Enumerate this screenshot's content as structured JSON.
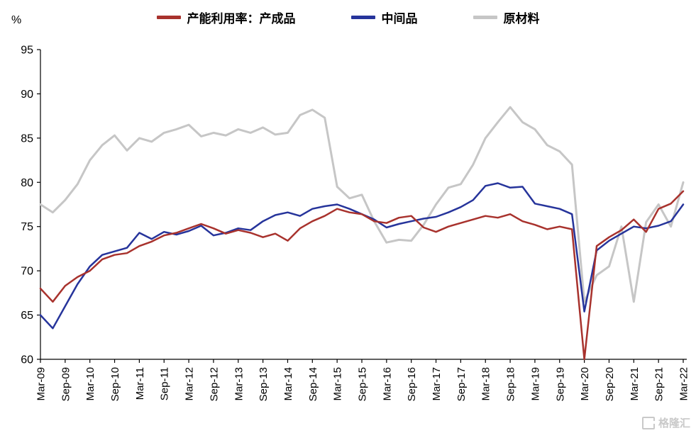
{
  "watermark": {
    "text": "格隆汇"
  },
  "chart_data": {
    "type": "line",
    "title": "",
    "xlabel": "",
    "ylabel": "%",
    "ylim": [
      60,
      95
    ],
    "ytick_step": 5,
    "grid": false,
    "legend_position": "top",
    "points_per_tick": 2,
    "x_tick_labels": [
      "Mar-09",
      "Sep-09",
      "Mar-10",
      "Sep-10",
      "Mar-11",
      "Sep-11",
      "Mar-12",
      "Sep-12",
      "Mar-13",
      "Sep-13",
      "Mar-14",
      "Sep-14",
      "Mar-15",
      "Sep-15",
      "Mar-16",
      "Sep-16",
      "Mar-17",
      "Sep-17",
      "Mar-18",
      "Sep-18",
      "Mar-19",
      "Sep-19",
      "Mar-20",
      "Sep-20",
      "Mar-21",
      "Sep-21",
      "Mar-22"
    ],
    "x_frequency": "quarterly",
    "series": [
      {
        "name": "产能利用率：产成品",
        "color": "#a8322d",
        "values": [
          68,
          66.5,
          68.3,
          69.3,
          70,
          71.3,
          71.8,
          72,
          72.8,
          73.3,
          74,
          74.3,
          74.8,
          75.3,
          74.8,
          74.2,
          74.6,
          74.3,
          73.8,
          74.2,
          73.4,
          74.8,
          75.6,
          76.2,
          77,
          76.6,
          76.4,
          75.6,
          75.4,
          76,
          76.2,
          74.9,
          74.4,
          75,
          75.4,
          75.8,
          76.2,
          76,
          76.4,
          75.6,
          75.2,
          74.7,
          75,
          74.7,
          60,
          72.8,
          73.8,
          74.6,
          75.8,
          74.4,
          77,
          77.6,
          79
        ]
      },
      {
        "name": "中间品",
        "color": "#26349b",
        "values": [
          65,
          63.5,
          66,
          68.5,
          70.5,
          71.8,
          72.2,
          72.6,
          74.3,
          73.6,
          74.4,
          74.1,
          74.5,
          75.1,
          74,
          74.3,
          74.8,
          74.6,
          75.6,
          76.3,
          76.6,
          76.2,
          77,
          77.3,
          77.5,
          77,
          76.4,
          75.8,
          74.9,
          75.3,
          75.6,
          75.9,
          76.1,
          76.6,
          77.2,
          78,
          79.6,
          79.9,
          79.4,
          79.5,
          77.6,
          77.3,
          77,
          76.4,
          65.4,
          72.3,
          73.4,
          74.2,
          75,
          74.8,
          75.1,
          75.6,
          77.5
        ]
      },
      {
        "name": "原材料",
        "color": "#c6c6c6",
        "values": [
          77.5,
          76.6,
          78,
          79.8,
          82.5,
          84.2,
          85.3,
          83.6,
          85,
          84.6,
          85.6,
          86,
          86.5,
          85.2,
          85.6,
          85.3,
          86,
          85.6,
          86.2,
          85.4,
          85.6,
          87.6,
          88.2,
          87.3,
          79.5,
          78.2,
          78.6,
          75.6,
          73.2,
          73.5,
          73.4,
          75.2,
          77.5,
          79.4,
          79.8,
          82,
          85,
          86.8,
          88.5,
          86.8,
          86,
          84.2,
          83.5,
          82,
          66.5,
          69.5,
          70.5,
          75,
          66.5,
          75.5,
          77.5,
          75,
          80
        ]
      }
    ]
  }
}
